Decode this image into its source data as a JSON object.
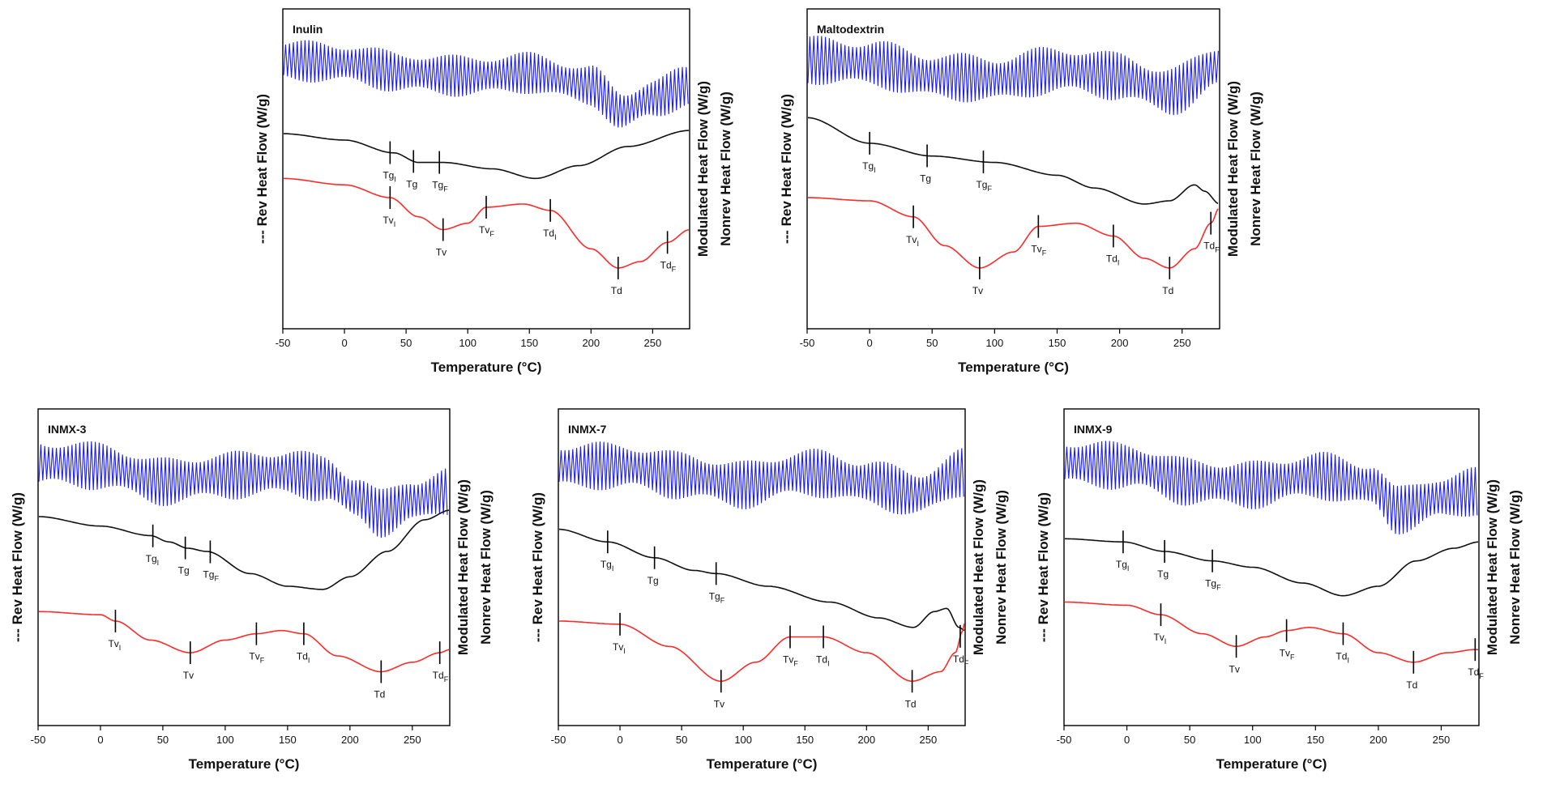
{
  "figure": {
    "xlabel": "Temperature (°C)",
    "ylabel_left": "Rev Heat Flow (W/g)",
    "ylabel_right_1": "Modulated Heat Flow (W/g)",
    "ylabel_right_2": "Nonrev Heat Flow (W/g)",
    "colors": {
      "modulated": "#1a1aff",
      "rev": "#111111",
      "nonrev": "#ff2a2a",
      "frame": "#000000"
    }
  },
  "chart_data": [
    {
      "type": "line",
      "title": "Inulin",
      "xlabel": "Temperature (°C)",
      "xlim": [
        -50,
        280
      ],
      "xticks": [
        -50,
        0,
        50,
        100,
        150,
        200,
        250
      ],
      "ylim": [
        0,
        100
      ],
      "series": [
        {
          "name": "Modulated Heat Flow",
          "band": [
            [
              -50,
              84
            ],
            [
              0,
              83
            ],
            [
              50,
              80
            ],
            [
              100,
              79
            ],
            [
              150,
              80
            ],
            [
              200,
              76
            ],
            [
              225,
              68
            ],
            [
              250,
              72
            ],
            [
              280,
              76
            ]
          ],
          "amp": 6
        },
        {
          "name": "Rev Heat Flow",
          "x": [
            -50,
            0,
            40,
            60,
            80,
            120,
            155,
            190,
            230,
            280
          ],
          "y": [
            61,
            59,
            55,
            52,
            52,
            50,
            47,
            51,
            57,
            62
          ]
        },
        {
          "name": "Nonrev Heat Flow",
          "x": [
            -50,
            0,
            37,
            60,
            80,
            100,
            115,
            145,
            167,
            200,
            222,
            240,
            262,
            280
          ],
          "y": [
            47,
            45,
            41,
            35,
            31,
            33,
            38,
            39,
            37,
            25,
            19,
            21,
            27,
            31
          ]
        }
      ],
      "annotations": [
        {
          "label": "Tg",
          "sub": "I",
          "x": 37,
          "series": "rev",
          "pos": "below"
        },
        {
          "label": "Tg",
          "sub": "",
          "x": 56,
          "series": "rev",
          "pos": "below"
        },
        {
          "label": "Tg",
          "sub": "F",
          "x": 77,
          "series": "rev",
          "pos": "below"
        },
        {
          "label": "Tv",
          "sub": "I",
          "x": 37,
          "series": "nonrev",
          "pos": "below"
        },
        {
          "label": "Tv",
          "sub": "",
          "x": 80,
          "series": "nonrev",
          "pos": "below"
        },
        {
          "label": "Tv",
          "sub": "F",
          "x": 115,
          "series": "nonrev",
          "pos": "below"
        },
        {
          "label": "Td",
          "sub": "I",
          "x": 167,
          "series": "nonrev",
          "pos": "below"
        },
        {
          "label": "Td",
          "sub": "",
          "x": 222,
          "series": "nonrev",
          "pos": "below"
        },
        {
          "label": "Td",
          "sub": "F",
          "x": 262,
          "series": "nonrev",
          "pos": "below"
        }
      ]
    },
    {
      "type": "line",
      "title": "Maltodextrin",
      "xlabel": "Temperature (°C)",
      "xlim": [
        -50,
        280
      ],
      "xticks": [
        -50,
        0,
        50,
        100,
        150,
        200,
        250
      ],
      "ylim": [
        0,
        100
      ],
      "series": [
        {
          "name": "Modulated Heat Flow",
          "band": [
            [
              -50,
              84
            ],
            [
              0,
              83
            ],
            [
              50,
              79
            ],
            [
              100,
              78
            ],
            [
              150,
              81
            ],
            [
              200,
              79
            ],
            [
              240,
              74
            ],
            [
              280,
              82
            ]
          ],
          "amp": 7
        },
        {
          "name": "Rev Heat Flow",
          "x": [
            -50,
            0,
            50,
            100,
            150,
            180,
            220,
            240,
            260,
            268,
            280
          ],
          "y": [
            66,
            58,
            54,
            52,
            48,
            44,
            39,
            40,
            45,
            43,
            39
          ]
        },
        {
          "name": "Nonrev Heat Flow",
          "x": [
            -50,
            0,
            35,
            60,
            88,
            115,
            135,
            165,
            195,
            220,
            240,
            260,
            273,
            280
          ],
          "y": [
            41,
            40,
            35,
            26,
            19,
            24,
            32,
            33,
            29,
            22,
            19,
            25,
            33,
            38
          ]
        }
      ],
      "annotations": [
        {
          "label": "Tg",
          "sub": "I",
          "x": 0,
          "series": "rev",
          "pos": "below"
        },
        {
          "label": "Tg",
          "sub": "",
          "x": 46,
          "series": "rev",
          "pos": "below"
        },
        {
          "label": "Tg",
          "sub": "F",
          "x": 91,
          "series": "rev",
          "pos": "below"
        },
        {
          "label": "Tv",
          "sub": "I",
          "x": 35,
          "series": "nonrev",
          "pos": "below"
        },
        {
          "label": "Tv",
          "sub": "",
          "x": 88,
          "series": "nonrev",
          "pos": "below"
        },
        {
          "label": "Tv",
          "sub": "F",
          "x": 135,
          "series": "nonrev",
          "pos": "below"
        },
        {
          "label": "Td",
          "sub": "I",
          "x": 195,
          "series": "nonrev",
          "pos": "below"
        },
        {
          "label": "Td",
          "sub": "",
          "x": 240,
          "series": "nonrev",
          "pos": "below"
        },
        {
          "label": "Td",
          "sub": "F",
          "x": 273,
          "series": "nonrev",
          "pos": "below"
        }
      ]
    },
    {
      "type": "line",
      "title": "INMX-3",
      "xlabel": "Temperature (°C)",
      "xlim": [
        -50,
        280
      ],
      "xticks": [
        -50,
        0,
        50,
        100,
        150,
        200,
        250
      ],
      "ylim": [
        0,
        100
      ],
      "series": [
        {
          "name": "Modulated Heat Flow",
          "band": [
            [
              -50,
              83
            ],
            [
              0,
              82
            ],
            [
              50,
              77
            ],
            [
              100,
              79
            ],
            [
              150,
              80
            ],
            [
              180,
              78
            ],
            [
              205,
              72
            ],
            [
              225,
              67
            ],
            [
              250,
              71
            ],
            [
              280,
              74
            ]
          ],
          "amp": 7
        },
        {
          "name": "Rev Heat Flow",
          "x": [
            -50,
            0,
            40,
            55,
            70,
            85,
            120,
            150,
            178,
            200,
            230,
            260,
            280
          ],
          "y": [
            66,
            63,
            60,
            58,
            56,
            55,
            48,
            44,
            43,
            47,
            55,
            65,
            68
          ]
        },
        {
          "name": "Nonrev Heat Flow",
          "x": [
            -50,
            0,
            12,
            40,
            72,
            100,
            125,
            145,
            163,
            190,
            225,
            250,
            272,
            280
          ],
          "y": [
            36,
            35,
            33,
            27,
            23,
            27,
            29,
            30,
            29,
            22,
            17,
            20,
            23,
            24
          ]
        }
      ],
      "annotations": [
        {
          "label": "Tg",
          "sub": "I",
          "x": 42,
          "series": "rev",
          "pos": "below"
        },
        {
          "label": "Tg",
          "sub": "",
          "x": 68,
          "series": "rev",
          "pos": "below"
        },
        {
          "label": "Tg",
          "sub": "F",
          "x": 88,
          "series": "rev",
          "pos": "below"
        },
        {
          "label": "Tv",
          "sub": "I",
          "x": 12,
          "series": "nonrev",
          "pos": "below"
        },
        {
          "label": "Tv",
          "sub": "",
          "x": 72,
          "series": "nonrev",
          "pos": "below"
        },
        {
          "label": "Tv",
          "sub": "F",
          "x": 125,
          "series": "nonrev",
          "pos": "below"
        },
        {
          "label": "Td",
          "sub": "I",
          "x": 163,
          "series": "nonrev",
          "pos": "below"
        },
        {
          "label": "Td",
          "sub": "",
          "x": 225,
          "series": "nonrev",
          "pos": "below"
        },
        {
          "label": "Td",
          "sub": "F",
          "x": 272,
          "series": "nonrev",
          "pos": "below"
        }
      ]
    },
    {
      "type": "line",
      "title": "INMX-7",
      "xlabel": "Temperature (°C)",
      "xlim": [
        -50,
        280
      ],
      "xticks": [
        -50,
        0,
        50,
        100,
        150,
        200,
        250
      ],
      "ylim": [
        0,
        100
      ],
      "series": [
        {
          "name": "Modulated Heat Flow",
          "band": [
            [
              -50,
              82
            ],
            [
              0,
              82
            ],
            [
              50,
              79
            ],
            [
              100,
              76
            ],
            [
              150,
              80
            ],
            [
              200,
              77
            ],
            [
              240,
              73
            ],
            [
              280,
              80
            ]
          ],
          "amp": 7
        },
        {
          "name": "Rev Heat Flow",
          "x": [
            -50,
            -10,
            28,
            60,
            78,
            120,
            170,
            210,
            238,
            255,
            265,
            275,
            280
          ],
          "y": [
            62,
            58,
            53,
            49,
            48,
            44,
            39,
            34,
            31,
            36,
            37,
            31,
            30
          ]
        },
        {
          "name": "Nonrev Heat Flow",
          "x": [
            -50,
            0,
            40,
            82,
            110,
            138,
            165,
            200,
            237,
            260,
            272,
            278,
            280
          ],
          "y": [
            33,
            32,
            25,
            14,
            20,
            28,
            28,
            23,
            14,
            17,
            23,
            30,
            33
          ]
        }
      ],
      "annotations": [
        {
          "label": "Tg",
          "sub": "I",
          "x": -10,
          "series": "rev",
          "pos": "below"
        },
        {
          "label": "Tg",
          "sub": "",
          "x": 28,
          "series": "rev",
          "pos": "below"
        },
        {
          "label": "Tg",
          "sub": "F",
          "x": 78,
          "series": "rev",
          "pos": "below"
        },
        {
          "label": "Tv",
          "sub": "I",
          "x": 0,
          "series": "nonrev",
          "pos": "below"
        },
        {
          "label": "Tv",
          "sub": "",
          "x": 82,
          "series": "nonrev",
          "pos": "below"
        },
        {
          "label": "Tv",
          "sub": "F",
          "x": 138,
          "series": "nonrev",
          "pos": "below"
        },
        {
          "label": "Td",
          "sub": "I",
          "x": 165,
          "series": "nonrev",
          "pos": "below"
        },
        {
          "label": "Td",
          "sub": "",
          "x": 237,
          "series": "nonrev",
          "pos": "below"
        },
        {
          "label": "Td",
          "sub": "F",
          "x": 276,
          "series": "nonrev",
          "pos": "below"
        }
      ]
    },
    {
      "type": "line",
      "title": "INMX-9",
      "xlabel": "Temperature (°C)",
      "xlim": [
        -50,
        280
      ],
      "xticks": [
        -50,
        0,
        50,
        100,
        150,
        200,
        250
      ],
      "ylim": [
        0,
        100
      ],
      "series": [
        {
          "name": "Modulated Heat Flow",
          "band": [
            [
              -50,
              83
            ],
            [
              0,
              82
            ],
            [
              50,
              77
            ],
            [
              100,
              76
            ],
            [
              150,
              79
            ],
            [
              195,
              76
            ],
            [
              215,
              68
            ],
            [
              250,
              72
            ],
            [
              280,
              74
            ]
          ],
          "amp": 7
        },
        {
          "name": "Rev Heat Flow",
          "x": [
            -50,
            -3,
            30,
            68,
            100,
            140,
            172,
            200,
            230,
            260,
            280
          ],
          "y": [
            59,
            58,
            55,
            52,
            50,
            45,
            41,
            44,
            52,
            56,
            58
          ]
        },
        {
          "name": "Nonrev Heat Flow",
          "x": [
            -50,
            0,
            27,
            60,
            87,
            110,
            127,
            145,
            172,
            200,
            228,
            255,
            277,
            280
          ],
          "y": [
            39,
            38,
            35,
            29,
            25,
            28,
            30,
            31,
            29,
            23,
            20,
            23,
            24,
            24
          ]
        }
      ],
      "annotations": [
        {
          "label": "Tg",
          "sub": "I",
          "x": -3,
          "series": "rev",
          "pos": "below"
        },
        {
          "label": "Tg",
          "sub": "",
          "x": 30,
          "series": "rev",
          "pos": "below"
        },
        {
          "label": "Tg",
          "sub": "F",
          "x": 68,
          "series": "rev",
          "pos": "below"
        },
        {
          "label": "Tv",
          "sub": "I",
          "x": 27,
          "series": "nonrev",
          "pos": "below"
        },
        {
          "label": "Tv",
          "sub": "",
          "x": 87,
          "series": "nonrev",
          "pos": "below"
        },
        {
          "label": "Tv",
          "sub": "F",
          "x": 127,
          "series": "nonrev",
          "pos": "below"
        },
        {
          "label": "Td",
          "sub": "I",
          "x": 172,
          "series": "nonrev",
          "pos": "below"
        },
        {
          "label": "Td",
          "sub": "",
          "x": 228,
          "series": "nonrev",
          "pos": "below"
        },
        {
          "label": "Td",
          "sub": "F",
          "x": 277,
          "series": "nonrev",
          "pos": "below"
        }
      ]
    }
  ]
}
